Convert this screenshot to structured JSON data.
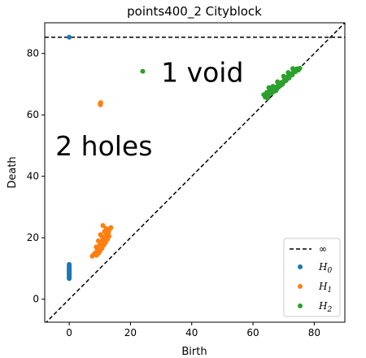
{
  "chart_data": {
    "type": "scatter",
    "title": "points400_2 Cityblock",
    "xlabel": "Birth",
    "ylabel": "Death",
    "xlim": [
      -8,
      90
    ],
    "ylim": [
      -7.5,
      90
    ],
    "xticks": [
      0,
      20,
      40,
      60,
      80
    ],
    "yticks": [
      0,
      20,
      40,
      60,
      80
    ],
    "grid": false,
    "legend_position": "lower-right",
    "diagonal": true,
    "infinity_line": {
      "label": "∞",
      "y": 85.3,
      "style": "dashed"
    },
    "annotations": [
      {
        "text": "1 void",
        "x": 30,
        "y": 74
      },
      {
        "text": "2 holes",
        "x": -4.5,
        "y": 50
      }
    ],
    "series": [
      {
        "name": "H",
        "subscript": "0",
        "color": "#1f77b4",
        "points": [
          [
            0,
            85.3
          ],
          [
            0,
            6.7
          ],
          [
            0,
            7.0
          ],
          [
            0,
            7.3
          ],
          [
            0,
            7.6
          ],
          [
            0,
            7.9
          ],
          [
            0,
            8.2
          ],
          [
            0,
            8.5
          ],
          [
            0,
            8.8
          ],
          [
            0,
            9.1
          ],
          [
            0,
            9.4
          ],
          [
            0,
            9.7
          ],
          [
            0,
            10.0
          ],
          [
            0,
            10.3
          ],
          [
            0,
            10.6
          ],
          [
            0,
            10.9
          ],
          [
            0,
            11.3
          ]
        ]
      },
      {
        "name": "H",
        "subscript": "1",
        "color": "#ff7f0e",
        "points": [
          [
            10.2,
            63.3
          ],
          [
            10.3,
            64.0
          ],
          [
            10.1,
            63.6
          ],
          [
            7.5,
            14.0
          ],
          [
            8.0,
            14.5
          ],
          [
            8.5,
            15.0
          ],
          [
            9.0,
            15.5
          ],
          [
            9.2,
            16.3
          ],
          [
            9.5,
            16.8
          ],
          [
            9.8,
            17.2
          ],
          [
            10.0,
            17.8
          ],
          [
            10.3,
            18.0
          ],
          [
            10.6,
            18.5
          ],
          [
            10.9,
            19.0
          ],
          [
            11.2,
            19.5
          ],
          [
            11.5,
            20.0
          ],
          [
            11.8,
            20.5
          ],
          [
            12.1,
            21.0
          ],
          [
            12.4,
            21.5
          ],
          [
            12.7,
            22.0
          ],
          [
            13.0,
            22.5
          ],
          [
            13.3,
            23.0
          ],
          [
            13.6,
            23.3
          ],
          [
            11.0,
            24.0
          ],
          [
            10.2,
            21.0
          ],
          [
            9.5,
            19.0
          ],
          [
            8.8,
            17.0
          ],
          [
            12.0,
            23.0
          ],
          [
            11.5,
            22.0
          ],
          [
            10.8,
            20.3
          ],
          [
            13.0,
            20.5
          ],
          [
            12.5,
            19.5
          ],
          [
            11.9,
            18.5
          ],
          [
            11.3,
            17.6
          ],
          [
            10.7,
            16.5
          ],
          [
            10.1,
            15.8
          ],
          [
            9.6,
            15.0
          ],
          [
            8.9,
            14.3
          ],
          [
            8.2,
            14.8
          ],
          [
            12.8,
            21.6
          ]
        ]
      },
      {
        "name": "H",
        "subscript": "2",
        "color": "#2ca02c",
        "points": [
          [
            24.0,
            74.2
          ],
          [
            63.5,
            66.6
          ],
          [
            64.0,
            65.8
          ],
          [
            64.5,
            67.3
          ],
          [
            65.0,
            66.4
          ],
          [
            65.5,
            68.2
          ],
          [
            66.0,
            67.0
          ],
          [
            66.3,
            68.8
          ],
          [
            66.8,
            67.6
          ],
          [
            67.2,
            69.0
          ],
          [
            67.8,
            68.5
          ],
          [
            68.3,
            69.8
          ],
          [
            68.8,
            69.4
          ],
          [
            69.3,
            70.6
          ],
          [
            69.8,
            70.3
          ],
          [
            70.3,
            71.5
          ],
          [
            70.8,
            71.2
          ],
          [
            71.3,
            72.4
          ],
          [
            71.8,
            72.0
          ],
          [
            72.3,
            73.4
          ],
          [
            72.8,
            73.0
          ],
          [
            73.3,
            74.4
          ],
          [
            73.8,
            74.0
          ],
          [
            74.3,
            75.0
          ],
          [
            74.8,
            74.6
          ],
          [
            75.3,
            75.2
          ],
          [
            65.2,
            68.9
          ],
          [
            66.5,
            69.3
          ],
          [
            68.0,
            70.8
          ],
          [
            70.0,
            72.6
          ],
          [
            71.5,
            73.8
          ],
          [
            73.0,
            75.1
          ],
          [
            64.8,
            65.5
          ],
          [
            67.5,
            67.9
          ],
          [
            69.5,
            69.9
          ]
        ]
      }
    ]
  }
}
